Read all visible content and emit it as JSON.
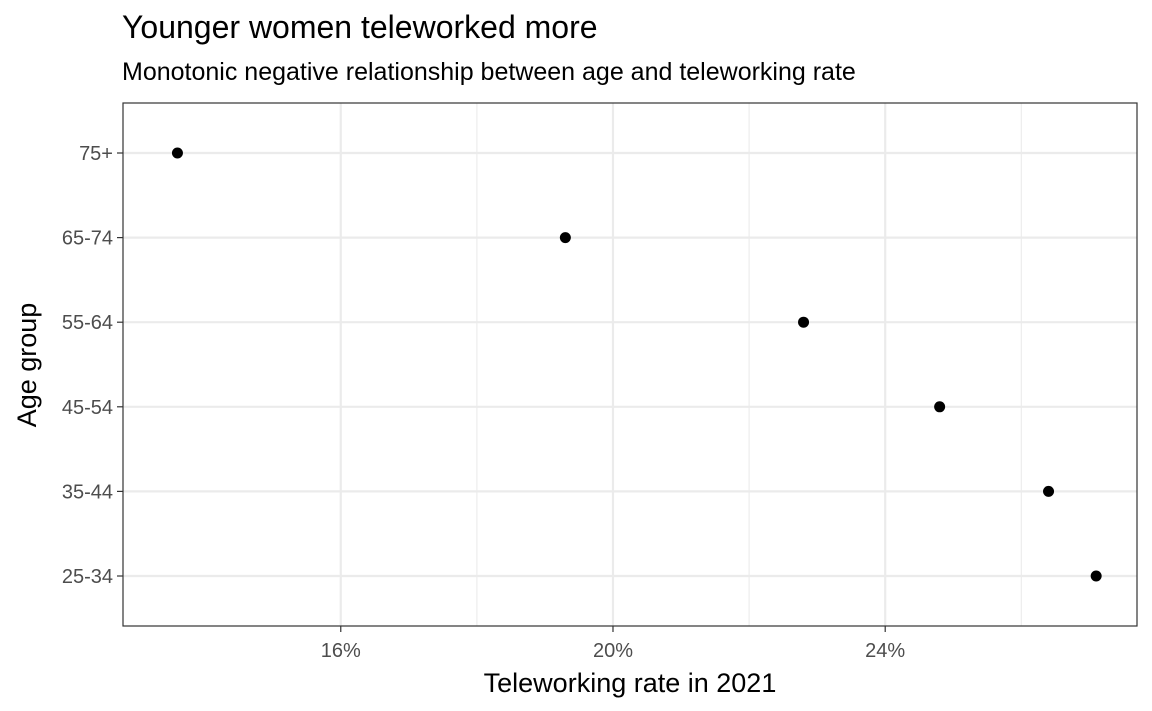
{
  "chart_data": {
    "type": "scatter",
    "title": "Younger women teleworked more",
    "subtitle": "Monotonic negative relationship between age and teleworking rate",
    "xlabel": "Teleworking rate in 2021",
    "ylabel": "Age group",
    "categories": [
      "25-34",
      "35-44",
      "45-54",
      "55-64",
      "65-74",
      "75+"
    ],
    "values": [
      27.1,
      26.4,
      24.8,
      22.8,
      19.3,
      13.6
    ],
    "x_unit": "%",
    "x_ticks": [
      16,
      18,
      20,
      22,
      24,
      26
    ],
    "x_tick_labels": [
      "16%",
      "20%",
      "24%"
    ],
    "xlim": [
      12.8,
      27.7
    ],
    "grid": true,
    "colors": {
      "point": "#000000",
      "grid": "#ebebeb",
      "border": "#333333"
    }
  }
}
